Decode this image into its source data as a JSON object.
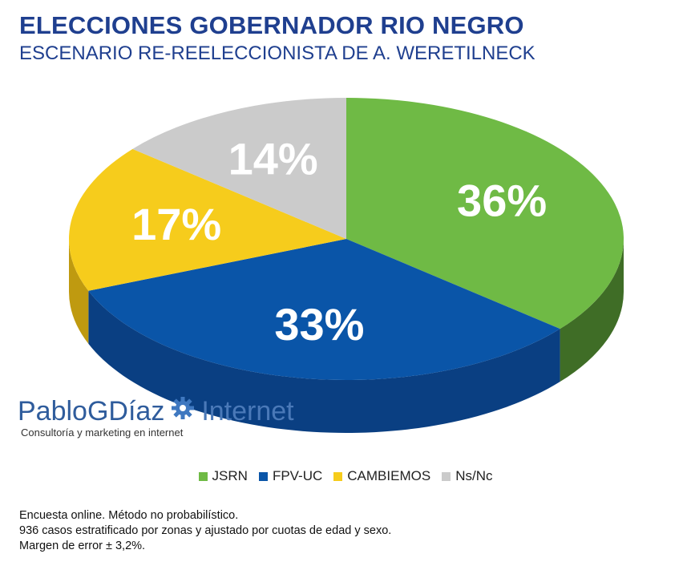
{
  "header": {
    "title": "ELECCIONES GOBERNADOR RIO NEGRO",
    "subtitle": "ESCENARIO RE-REELECCIONISTA DE A. WERETILNECK"
  },
  "chart_data": {
    "type": "pie",
    "title": "ELECCIONES GOBERNADOR RIO NEGRO",
    "subtitle": "ESCENARIO RE-REELECCIONISTA DE A. WERETILNECK",
    "style": "3d",
    "legend_position": "bottom",
    "slices": [
      {
        "label": "JSRN",
        "value": 36,
        "display": "36%",
        "color": "#6fba45",
        "side_color": "#3f6d26"
      },
      {
        "label": "FPV-UC",
        "value": 33,
        "display": "33%",
        "color": "#0a55a8",
        "side_color": "#0a3f82"
      },
      {
        "label": "CAMBIEMOS",
        "value": 17,
        "display": "17%",
        "color": "#f6cc1c",
        "side_color": "#bf9a10"
      },
      {
        "label": "Ns/Nc",
        "value": 14,
        "display": "14%",
        "color": "#cbcbcb",
        "side_color": "#8e8e8e"
      }
    ]
  },
  "brand": {
    "name_part1": "PabloGDíaz",
    "name_part2": "Internet",
    "tagline": "Consultoría y marketing en internet",
    "icon": "gear-icon"
  },
  "notes": {
    "line1": "Encuesta online. Método no probabilístico.",
    "line2": "936 casos estratificado por zonas y ajustado por cuotas de edad y sexo.",
    "line3": "Margen de error ± 3,2%."
  }
}
